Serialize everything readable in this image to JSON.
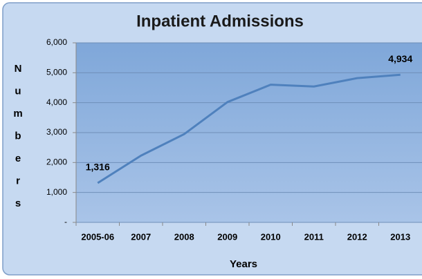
{
  "chart_data": {
    "type": "line",
    "title": "Inpatient Admissions",
    "x_label": "Years",
    "y_label": "Numbers",
    "categories": [
      "2005-06",
      "2007",
      "2008",
      "2009",
      "2010",
      "2011",
      "2012",
      "2013"
    ],
    "series": [
      {
        "name": "Inpatient Admissions",
        "color": "#4f81bd",
        "values": [
          1316,
          2230,
          2950,
          4020,
          4600,
          4540,
          4820,
          4934
        ]
      }
    ],
    "value_labels": [
      "1,316",
      null,
      null,
      null,
      null,
      null,
      null,
      "4,934"
    ],
    "ylim": [
      0,
      6000
    ],
    "yticks": [
      {
        "value": 0,
        "label": "-"
      },
      {
        "value": 1000,
        "label": "1,000"
      },
      {
        "value": 2000,
        "label": "2,000"
      },
      {
        "value": 3000,
        "label": "3,000"
      },
      {
        "value": 4000,
        "label": "4,000"
      },
      {
        "value": 5000,
        "label": "5,000"
      },
      {
        "value": 6000,
        "label": "6,000"
      }
    ],
    "grid": true
  }
}
